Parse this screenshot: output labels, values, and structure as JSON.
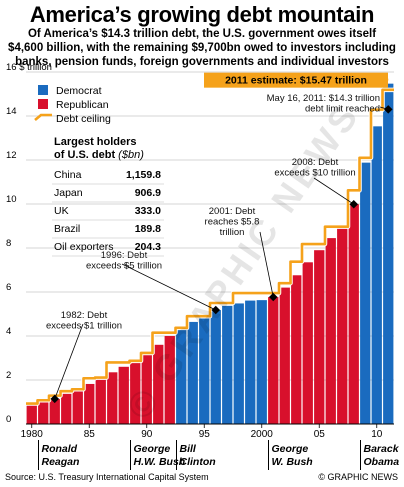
{
  "header": {
    "title": "America’s growing debt mountain",
    "subtitle_lines": [
      "Of America’s $14.3 trillion debt, the U.S. government owes itself",
      "$4,600 billion, with the remaining $9,700bn owed to investors including",
      "banks, pension funds, foreign governments and individual investors"
    ]
  },
  "chart_data": {
    "type": "bar",
    "ylabel": "$ trillion",
    "ylim": [
      0,
      16
    ],
    "yticks": [
      0,
      2,
      4,
      6,
      8,
      10,
      12,
      14,
      16
    ],
    "x_tick_labels": [
      "1980",
      "85",
      "90",
      "95",
      "2000",
      "05",
      "10"
    ],
    "years": [
      1980,
      1981,
      1982,
      1983,
      1984,
      1985,
      1986,
      1987,
      1988,
      1989,
      1990,
      1991,
      1992,
      1993,
      1994,
      1995,
      1996,
      1997,
      1998,
      1999,
      2000,
      2001,
      2002,
      2003,
      2004,
      2005,
      2006,
      2007,
      2008,
      2009,
      2010,
      2011
    ],
    "debt_values": [
      0.91,
      1.0,
      1.14,
      1.37,
      1.57,
      1.82,
      2.13,
      2.35,
      2.6,
      2.87,
      3.21,
      3.6,
      4.0,
      4.35,
      4.64,
      4.92,
      5.18,
      5.37,
      5.48,
      5.61,
      5.63,
      5.77,
      6.2,
      6.76,
      7.35,
      7.9,
      8.45,
      8.95,
      9.99,
      11.88,
      13.53,
      15.47
    ],
    "party": [
      "R",
      "R",
      "R",
      "R",
      "R",
      "R",
      "R",
      "R",
      "R",
      "R",
      "R",
      "R",
      "R",
      "D",
      "D",
      "D",
      "D",
      "D",
      "D",
      "D",
      "D",
      "R",
      "R",
      "R",
      "R",
      "R",
      "R",
      "R",
      "R",
      "D",
      "D",
      "D"
    ],
    "debt_ceiling": [
      0.93,
      1.08,
      1.29,
      1.49,
      1.58,
      2.08,
      2.11,
      2.8,
      2.8,
      2.87,
      3.23,
      4.15,
      4.15,
      4.37,
      4.9,
      4.9,
      5.5,
      5.5,
      5.95,
      5.95,
      5.95,
      5.95,
      6.4,
      7.38,
      8.18,
      8.18,
      8.97,
      8.97,
      10.62,
      12.1,
      14.29,
      15.19
    ],
    "legend": [
      {
        "label": "Democrat",
        "color": "#1a6bbf"
      },
      {
        "label": "Republican",
        "color": "#d8102c"
      },
      {
        "label": "Debt ceiling",
        "color": "#f5a21b"
      }
    ],
    "holders": {
      "title_line1": "Largest holders",
      "title_line2": "of U.S. debt",
      "unit": "($bn)",
      "rows": [
        {
          "name": "China",
          "value": "1,159.8"
        },
        {
          "name": "Japan",
          "value": "906.9"
        },
        {
          "name": "UK",
          "value": "333.0"
        },
        {
          "name": "Brazil",
          "value": "189.8"
        },
        {
          "name": "Oil exporters",
          "value": "204.3"
        }
      ]
    },
    "annotations": [
      {
        "year": 1982,
        "value": 1.14,
        "lines": [
          "1982: Debt",
          "exceeds $1 trillion"
        ]
      },
      {
        "year": 1996,
        "value": 5.18,
        "lines": [
          "1996: Debt",
          "exceeds $5 trillion"
        ]
      },
      {
        "year": 2001,
        "value": 5.77,
        "lines": [
          "2001: Debt",
          "reaches $5.8",
          "trillion"
        ]
      },
      {
        "year": 2008,
        "value": 9.99,
        "lines": [
          "2008: Debt",
          "exceeds $10 trillion"
        ]
      },
      {
        "year": 2011,
        "value": 14.3,
        "lines": [
          "May 16, 2011: $14.3 trillion",
          "debt limit reached"
        ]
      }
    ],
    "estimate": {
      "label": "2011 estimate: $15.47 trillion",
      "value": 15.47
    },
    "presidents": [
      {
        "line1": "Ronald",
        "line2": "Reagan",
        "start": 1981,
        "end": 1988
      },
      {
        "line1": "George",
        "line2": "H.W. Bush",
        "start": 1989,
        "end": 1992
      },
      {
        "line1": "Bill",
        "line2": "Clinton",
        "start": 1993,
        "end": 2000
      },
      {
        "line1": "George",
        "line2": "W. Bush",
        "start": 2001,
        "end": 2008
      },
      {
        "line1": "Barack",
        "line2": "Obama",
        "start": 2009,
        "end": 2011
      }
    ],
    "colors": {
      "democrat": "#1a6bbf",
      "republican": "#d8102c",
      "ceiling": "#f5a21b",
      "grid": "#c9c9c9"
    }
  },
  "footer": {
    "source": "Source: U.S. Treasury International Capital System",
    "credit": "© GRAPHIC NEWS"
  },
  "watermark": "© GRAPHIC NEWS"
}
